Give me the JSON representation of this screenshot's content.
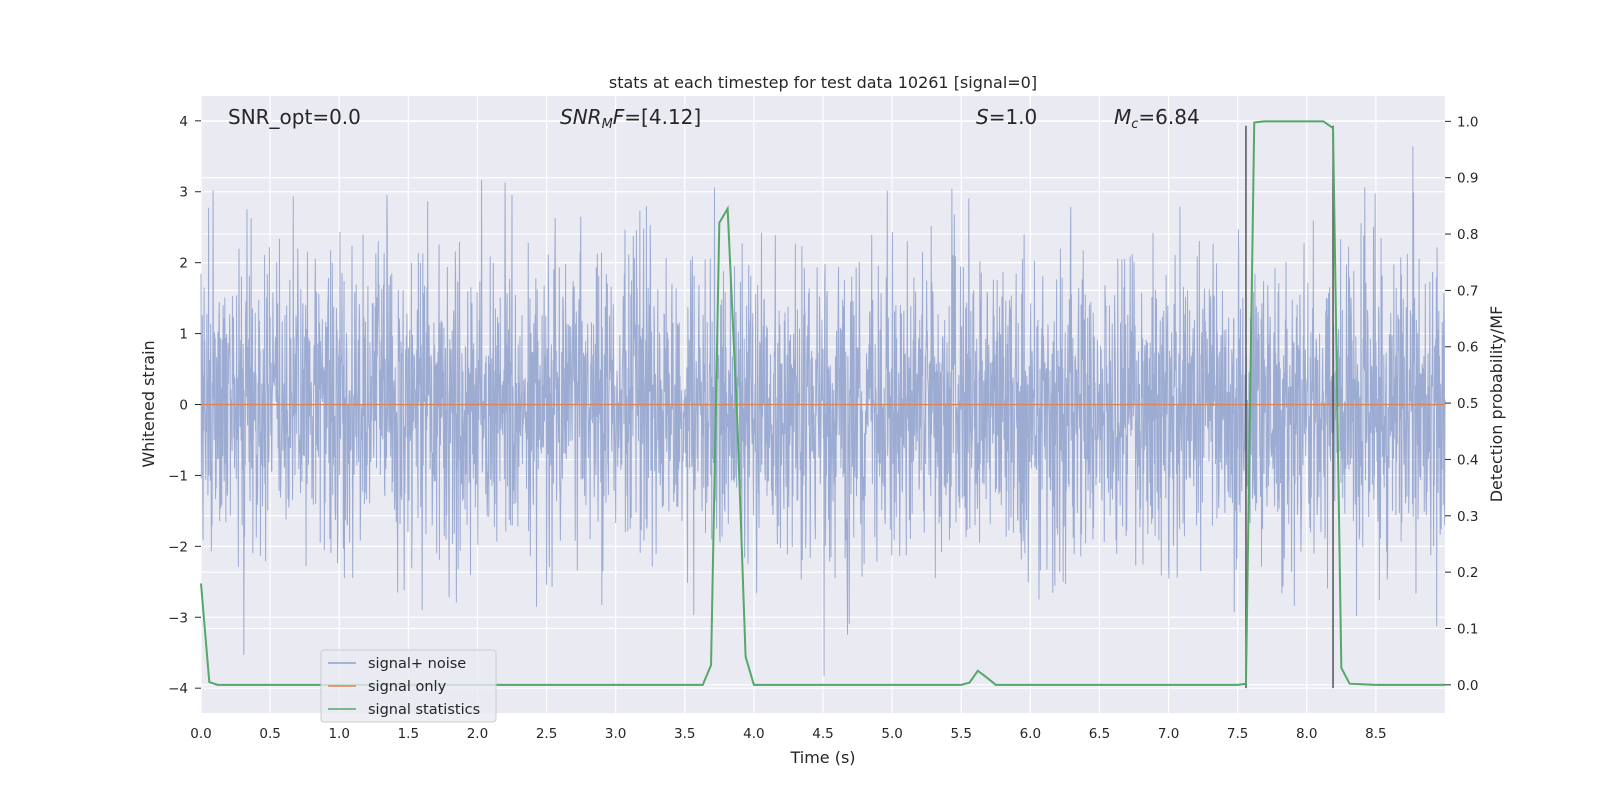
{
  "chart_data": {
    "type": "line",
    "title": "stats at each timestep for test data 10261 [signal=0]",
    "xlabel": "Time (s)",
    "ylabel": "Whitened strain",
    "ylabel_right": "Detection probability/MF",
    "xlim": [
      0.0,
      9.0
    ],
    "ylim": [
      -4.35,
      4.35
    ],
    "ylim_right": [
      -0.05,
      1.045
    ],
    "x_ticks": [
      "0.0",
      "0.5",
      "1.0",
      "1.5",
      "2.0",
      "2.5",
      "3.0",
      "3.5",
      "4.0",
      "4.5",
      "5.0",
      "5.5",
      "6.0",
      "6.5",
      "7.0",
      "7.5",
      "8.0",
      "8.5"
    ],
    "y_ticks": [
      "4",
      "3",
      "2",
      "1",
      "0",
      "−1",
      "−2",
      "−3",
      "−4"
    ],
    "y_ticks_right": [
      "1.0",
      "0.9",
      "0.8",
      "0.7",
      "0.6",
      "0.5",
      "0.4",
      "0.3",
      "0.2",
      "0.1",
      "0.0"
    ],
    "grid": true,
    "legend_position": "lower-left",
    "annotations": [
      {
        "name": "snr-opt",
        "text": "SNR_opt=0.0",
        "x": 0.2
      },
      {
        "name": "snr-mf",
        "text": "SNRMF=[4.12]",
        "x": 2.6
      },
      {
        "name": "s-stat",
        "text": "S=1.0",
        "x": 5.6
      },
      {
        "name": "chirp-mass",
        "text": "Mc=6.84",
        "x": 6.6
      }
    ],
    "vertical_lines": [
      7.56,
      8.19
    ],
    "noise_amplitude_range": [
      -4.0,
      3.95
    ],
    "series": [
      {
        "name": "signal+ noise",
        "color": "#8ea0cc",
        "axis": "left",
        "description": "whitened strain noise, dense"
      },
      {
        "name": "signal only",
        "color": "#dd8452",
        "axis": "left",
        "x": [
          0.0,
          9.0
        ],
        "values": [
          0.0,
          0.0
        ]
      },
      {
        "name": "signal statistics",
        "color": "#55a868",
        "axis": "right",
        "x": [
          0.0,
          0.06,
          0.12,
          0.5,
          1.0,
          1.5,
          2.0,
          2.5,
          3.0,
          3.5,
          3.63,
          3.69,
          3.75,
          3.81,
          3.88,
          3.94,
          4.0,
          4.5,
          5.0,
          5.5,
          5.56,
          5.62,
          5.69,
          5.75,
          6.0,
          6.5,
          7.0,
          7.5,
          7.56,
          7.62,
          7.69,
          7.75,
          8.0,
          8.12,
          8.19,
          8.25,
          8.31,
          8.5,
          9.0
        ],
        "values": [
          0.18,
          0.005,
          0.0,
          0.0,
          0.0,
          0.0,
          0.0,
          0.0,
          0.0,
          0.0,
          0.0,
          0.035,
          0.82,
          0.845,
          0.47,
          0.05,
          0.0,
          0.0,
          0.0,
          0.0,
          0.004,
          0.025,
          0.012,
          0.0,
          0.0,
          0.0,
          0.0,
          0.0,
          0.002,
          0.998,
          1.0,
          1.0,
          1.0,
          1.0,
          0.988,
          0.03,
          0.002,
          0.0,
          0.0
        ]
      }
    ]
  }
}
